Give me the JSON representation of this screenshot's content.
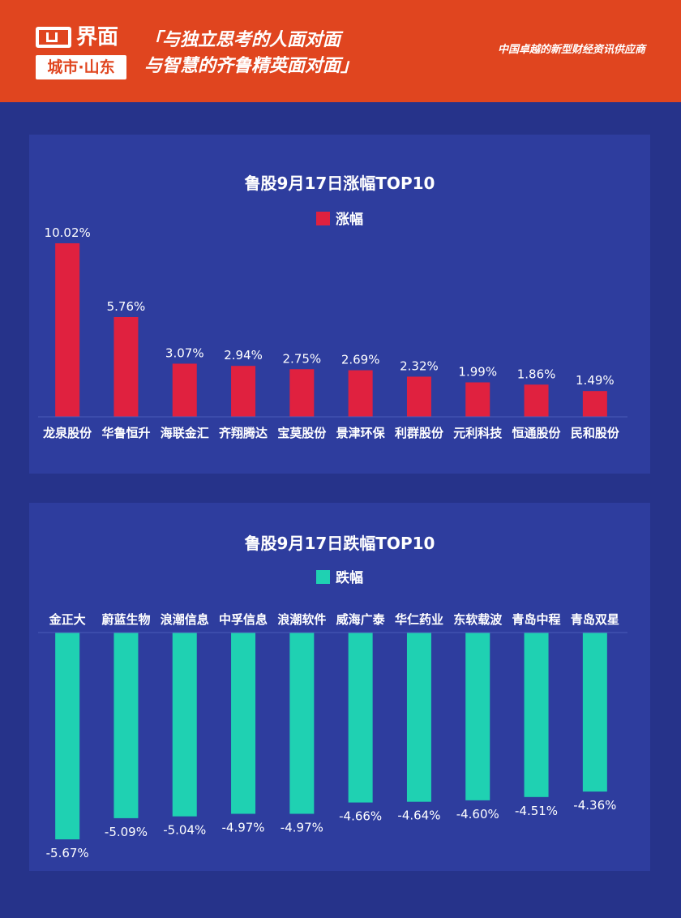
{
  "header": {
    "logo_main": "界面",
    "logo_sub": "城市·山东",
    "slogan_line1": "「与独立思考的人面对面",
    "slogan_line2": "与智慧的齐鲁精英面对面」",
    "tagline": "中国卓越的新型财经资讯供应商",
    "bg_color": "#e0451f"
  },
  "background_color": "#26338a",
  "chart_data": [
    {
      "type": "bar",
      "title": "鲁股9月17日涨幅TOP10",
      "categories": [
        "龙泉股份",
        "华鲁恒升",
        "海联金汇",
        "齐翔腾达",
        "宝莫股份",
        "景津环保",
        "利群股份",
        "元利科技",
        "恒通股份",
        "民和股份"
      ],
      "series": [
        {
          "name": "涨幅",
          "color": "#e0213f",
          "values": [
            10.02,
            5.76,
            3.07,
            2.94,
            2.75,
            2.69,
            2.32,
            1.99,
            1.86,
            1.49
          ],
          "labels": [
            "10.02%",
            "5.76%",
            "3.07%",
            "2.94%",
            "2.75%",
            "2.69%",
            "2.32%",
            "1.99%",
            "1.86%",
            "1.49%"
          ]
        }
      ],
      "ylim": [
        0,
        10.02
      ],
      "legend": "top-center",
      "grid": false
    },
    {
      "type": "bar",
      "title": "鲁股9月17日跌幅TOP10",
      "categories": [
        "金正大",
        "蔚蓝生物",
        "浪潮信息",
        "中孚信息",
        "浪潮软件",
        "威海广泰",
        "华仁药业",
        "东软载波",
        "青岛中程",
        "青岛双星"
      ],
      "series": [
        {
          "name": "跌幅",
          "color": "#1fd1b2",
          "values": [
            -5.67,
            -5.09,
            -5.04,
            -4.97,
            -4.97,
            -4.66,
            -4.64,
            -4.6,
            -4.51,
            -4.36
          ],
          "labels": [
            "-5.67%",
            "-5.09%",
            "-5.04%",
            "-4.97%",
            "-4.97%",
            "-4.66%",
            "-4.64%",
            "-4.60%",
            "-4.51%",
            "-4.36%"
          ]
        }
      ],
      "ylim": [
        -5.67,
        0
      ],
      "legend": "top-center",
      "grid": false
    }
  ]
}
